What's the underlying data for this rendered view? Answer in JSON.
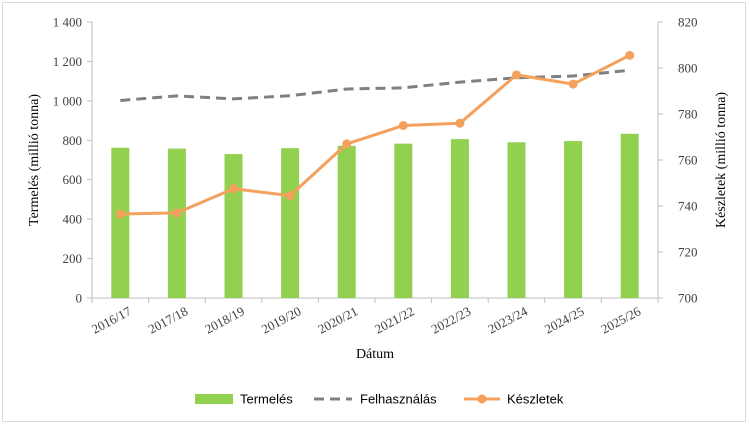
{
  "chart_data": {
    "type": "bar",
    "categories": [
      "2016/17",
      "2017/18",
      "2018/19",
      "2019/20",
      "2020/21",
      "2021/22",
      "2022/23",
      "2023/24",
      "2024/25",
      "2025/26"
    ],
    "series": [
      {
        "name": "Termelés",
        "type": "bar",
        "axis": "left",
        "color": "#92d050",
        "values": [
          762,
          758,
          730,
          760,
          772,
          783,
          806,
          790,
          796,
          833
        ]
      },
      {
        "name": "Felhasználás",
        "type": "line",
        "style": "dashed",
        "axis": "left",
        "color": "#808080",
        "values": [
          1002,
          1025,
          1010,
          1026,
          1060,
          1066,
          1095,
          1117,
          1126,
          1155
        ]
      },
      {
        "name": "Készletek",
        "type": "line",
        "style": "solid-markers",
        "axis": "right",
        "color": "#f4a15d",
        "values": [
          736.5,
          737.0,
          747.5,
          744.5,
          767.0,
          775.0,
          776.0,
          797.0,
          793.0,
          805.5
        ]
      }
    ],
    "xlabel": "Dátum",
    "ylabel": "Termelés (millió tonna)",
    "y2label": "Készletek (millió tonna)",
    "ylim": [
      0,
      1400
    ],
    "y2lim": [
      700,
      820
    ],
    "yticks": [
      "0",
      "200",
      "400",
      "600",
      "800",
      "1 000",
      "1 200",
      "1 400"
    ],
    "y2ticks": [
      "700",
      "720",
      "740",
      "760",
      "780",
      "800",
      "820"
    ],
    "legend_position": "bottom",
    "grid": false
  }
}
